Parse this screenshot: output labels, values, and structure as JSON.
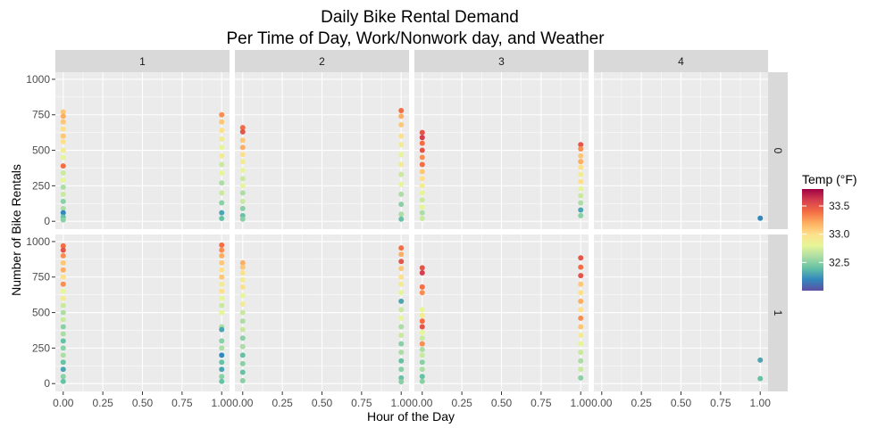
{
  "chart_data": {
    "type": "scatter",
    "title": "Daily Bike Rental Demand",
    "subtitle": "Per Time of Day, Work/Nonwork day, and Weather",
    "xlabel": "Hour of the Day",
    "ylabel": "Number of Bike Rentals",
    "xlim": [
      0,
      1
    ],
    "ylim": [
      0,
      1000
    ],
    "x_ticks": [
      "0.00",
      "0.25",
      "0.50",
      "0.75",
      "1.00"
    ],
    "y_ticks": [
      "0",
      "250",
      "500",
      "750",
      "1000"
    ],
    "facet_columns": [
      "1",
      "2",
      "3",
      "4"
    ],
    "facet_rows": [
      "0",
      "1"
    ],
    "grid": true,
    "legend": {
      "title": "Temp (°F)",
      "position": "right",
      "ticks": [
        "32.5",
        "33.0",
        "33.5"
      ],
      "range": [
        32.0,
        33.8
      ],
      "colors": [
        "#5e4fa2",
        "#3288bd",
        "#66c2a5",
        "#abdda4",
        "#e6f598",
        "#fee08b",
        "#fdae61",
        "#f46d43",
        "#d53e4f",
        "#9e0142"
      ]
    },
    "colors": {
      "panel_bg": "#ebebeb",
      "strip_bg": "#d9d9d9",
      "grid": "#ffffff"
    },
    "panels": [
      {
        "col": "1",
        "row": "0",
        "points": [
          {
            "x": 0,
            "y": 770,
            "t": 33.1
          },
          {
            "x": 0,
            "y": 740,
            "t": 33.2
          },
          {
            "x": 0,
            "y": 700,
            "t": 33.1
          },
          {
            "x": 0,
            "y": 650,
            "t": 33.0
          },
          {
            "x": 0,
            "y": 600,
            "t": 33.1
          },
          {
            "x": 0,
            "y": 560,
            "t": 33.0
          },
          {
            "x": 0,
            "y": 500,
            "t": 32.9
          },
          {
            "x": 0,
            "y": 450,
            "t": 32.8
          },
          {
            "x": 0,
            "y": 390,
            "t": 33.4
          },
          {
            "x": 0,
            "y": 340,
            "t": 32.7
          },
          {
            "x": 0,
            "y": 290,
            "t": 32.8
          },
          {
            "x": 0,
            "y": 240,
            "t": 32.6
          },
          {
            "x": 0,
            "y": 190,
            "t": 32.7
          },
          {
            "x": 0,
            "y": 140,
            "t": 32.5
          },
          {
            "x": 0,
            "y": 90,
            "t": 32.6
          },
          {
            "x": 0,
            "y": 60,
            "t": 32.2
          },
          {
            "x": 0,
            "y": 30,
            "t": 32.4
          },
          {
            "x": 0,
            "y": 10,
            "t": 32.5
          },
          {
            "x": 1,
            "y": 750,
            "t": 33.3
          },
          {
            "x": 1,
            "y": 700,
            "t": 33.1
          },
          {
            "x": 1,
            "y": 640,
            "t": 33.0
          },
          {
            "x": 1,
            "y": 580,
            "t": 32.9
          },
          {
            "x": 1,
            "y": 520,
            "t": 32.8
          },
          {
            "x": 1,
            "y": 460,
            "t": 32.9
          },
          {
            "x": 1,
            "y": 400,
            "t": 32.7
          },
          {
            "x": 1,
            "y": 340,
            "t": 32.8
          },
          {
            "x": 1,
            "y": 270,
            "t": 32.6
          },
          {
            "x": 1,
            "y": 200,
            "t": 32.7
          },
          {
            "x": 1,
            "y": 130,
            "t": 32.5
          },
          {
            "x": 1,
            "y": 60,
            "t": 32.3
          },
          {
            "x": 1,
            "y": 20,
            "t": 32.4
          }
        ]
      },
      {
        "col": "2",
        "row": "0",
        "points": [
          {
            "x": 0,
            "y": 660,
            "t": 33.4
          },
          {
            "x": 0,
            "y": 630,
            "t": 33.5
          },
          {
            "x": 0,
            "y": 570,
            "t": 33.1
          },
          {
            "x": 0,
            "y": 520,
            "t": 33.2
          },
          {
            "x": 0,
            "y": 470,
            "t": 33.0
          },
          {
            "x": 0,
            "y": 420,
            "t": 32.9
          },
          {
            "x": 0,
            "y": 360,
            "t": 32.8
          },
          {
            "x": 0,
            "y": 300,
            "t": 32.7
          },
          {
            "x": 0,
            "y": 250,
            "t": 32.8
          },
          {
            "x": 0,
            "y": 200,
            "t": 32.6
          },
          {
            "x": 0,
            "y": 140,
            "t": 32.7
          },
          {
            "x": 0,
            "y": 90,
            "t": 32.5
          },
          {
            "x": 0,
            "y": 40,
            "t": 32.4
          },
          {
            "x": 0,
            "y": 15,
            "t": 32.5
          },
          {
            "x": 1,
            "y": 780,
            "t": 33.4
          },
          {
            "x": 1,
            "y": 740,
            "t": 33.2
          },
          {
            "x": 1,
            "y": 680,
            "t": 33.1
          },
          {
            "x": 1,
            "y": 600,
            "t": 33.0
          },
          {
            "x": 1,
            "y": 540,
            "t": 32.9
          },
          {
            "x": 1,
            "y": 470,
            "t": 32.8
          },
          {
            "x": 1,
            "y": 400,
            "t": 32.9
          },
          {
            "x": 1,
            "y": 330,
            "t": 32.7
          },
          {
            "x": 1,
            "y": 260,
            "t": 32.8
          },
          {
            "x": 1,
            "y": 190,
            "t": 32.6
          },
          {
            "x": 1,
            "y": 120,
            "t": 32.5
          },
          {
            "x": 1,
            "y": 50,
            "t": 32.6
          },
          {
            "x": 1,
            "y": 15,
            "t": 32.4
          }
        ]
      },
      {
        "col": "3",
        "row": "0",
        "points": [
          {
            "x": 0,
            "y": 625,
            "t": 33.5
          },
          {
            "x": 0,
            "y": 590,
            "t": 33.6
          },
          {
            "x": 0,
            "y": 550,
            "t": 33.4
          },
          {
            "x": 0,
            "y": 500,
            "t": 33.5
          },
          {
            "x": 0,
            "y": 450,
            "t": 33.3
          },
          {
            "x": 0,
            "y": 400,
            "t": 33.4
          },
          {
            "x": 0,
            "y": 350,
            "t": 33.1
          },
          {
            "x": 0,
            "y": 300,
            "t": 33.0
          },
          {
            "x": 0,
            "y": 250,
            "t": 32.9
          },
          {
            "x": 0,
            "y": 200,
            "t": 32.8
          },
          {
            "x": 0,
            "y": 150,
            "t": 32.7
          },
          {
            "x": 0,
            "y": 100,
            "t": 32.8
          },
          {
            "x": 0,
            "y": 60,
            "t": 32.6
          },
          {
            "x": 0,
            "y": 20,
            "t": 32.7
          },
          {
            "x": 1,
            "y": 540,
            "t": 33.5
          },
          {
            "x": 1,
            "y": 510,
            "t": 33.3
          },
          {
            "x": 1,
            "y": 460,
            "t": 33.1
          },
          {
            "x": 1,
            "y": 420,
            "t": 33.2
          },
          {
            "x": 1,
            "y": 380,
            "t": 33.0
          },
          {
            "x": 1,
            "y": 330,
            "t": 32.9
          },
          {
            "x": 1,
            "y": 280,
            "t": 33.0
          },
          {
            "x": 1,
            "y": 230,
            "t": 32.8
          },
          {
            "x": 1,
            "y": 180,
            "t": 32.7
          },
          {
            "x": 1,
            "y": 130,
            "t": 32.6
          },
          {
            "x": 1,
            "y": 80,
            "t": 32.3
          },
          {
            "x": 1,
            "y": 40,
            "t": 32.5
          }
        ]
      },
      {
        "col": "4",
        "row": "0",
        "points": [
          {
            "x": 1,
            "y": 22,
            "t": 32.2
          }
        ]
      },
      {
        "col": "1",
        "row": "1",
        "points": [
          {
            "x": 0,
            "y": 970,
            "t": 33.4
          },
          {
            "x": 0,
            "y": 940,
            "t": 33.5
          },
          {
            "x": 0,
            "y": 900,
            "t": 33.3
          },
          {
            "x": 0,
            "y": 850,
            "t": 33.1
          },
          {
            "x": 0,
            "y": 800,
            "t": 33.2
          },
          {
            "x": 0,
            "y": 750,
            "t": 33.0
          },
          {
            "x": 0,
            "y": 700,
            "t": 33.3
          },
          {
            "x": 0,
            "y": 650,
            "t": 32.8
          },
          {
            "x": 0,
            "y": 600,
            "t": 32.9
          },
          {
            "x": 0,
            "y": 550,
            "t": 32.7
          },
          {
            "x": 0,
            "y": 500,
            "t": 32.6
          },
          {
            "x": 0,
            "y": 450,
            "t": 32.7
          },
          {
            "x": 0,
            "y": 400,
            "t": 32.5
          },
          {
            "x": 0,
            "y": 350,
            "t": 32.6
          },
          {
            "x": 0,
            "y": 300,
            "t": 32.4
          },
          {
            "x": 0,
            "y": 250,
            "t": 32.5
          },
          {
            "x": 0,
            "y": 200,
            "t": 32.6
          },
          {
            "x": 0,
            "y": 150,
            "t": 32.4
          },
          {
            "x": 0,
            "y": 100,
            "t": 32.3
          },
          {
            "x": 0,
            "y": 50,
            "t": 32.5
          },
          {
            "x": 0,
            "y": 15,
            "t": 32.4
          },
          {
            "x": 1,
            "y": 975,
            "t": 33.4
          },
          {
            "x": 1,
            "y": 940,
            "t": 33.3
          },
          {
            "x": 1,
            "y": 900,
            "t": 33.2
          },
          {
            "x": 1,
            "y": 850,
            "t": 33.1
          },
          {
            "x": 1,
            "y": 800,
            "t": 33.0
          },
          {
            "x": 1,
            "y": 750,
            "t": 33.1
          },
          {
            "x": 1,
            "y": 700,
            "t": 32.9
          },
          {
            "x": 1,
            "y": 650,
            "t": 33.0
          },
          {
            "x": 1,
            "y": 600,
            "t": 32.8
          },
          {
            "x": 1,
            "y": 550,
            "t": 32.7
          },
          {
            "x": 1,
            "y": 500,
            "t": 32.8
          },
          {
            "x": 1,
            "y": 400,
            "t": 32.6
          },
          {
            "x": 1,
            "y": 380,
            "t": 32.3
          },
          {
            "x": 1,
            "y": 300,
            "t": 32.5
          },
          {
            "x": 1,
            "y": 250,
            "t": 32.6
          },
          {
            "x": 1,
            "y": 200,
            "t": 32.2
          },
          {
            "x": 1,
            "y": 150,
            "t": 32.4
          },
          {
            "x": 1,
            "y": 100,
            "t": 32.3
          },
          {
            "x": 1,
            "y": 50,
            "t": 32.5
          },
          {
            "x": 1,
            "y": 15,
            "t": 32.4
          }
        ]
      },
      {
        "col": "2",
        "row": "1",
        "points": [
          {
            "x": 0,
            "y": 850,
            "t": 33.2
          },
          {
            "x": 0,
            "y": 820,
            "t": 33.1
          },
          {
            "x": 0,
            "y": 780,
            "t": 33.0
          },
          {
            "x": 0,
            "y": 730,
            "t": 32.9
          },
          {
            "x": 0,
            "y": 680,
            "t": 33.0
          },
          {
            "x": 0,
            "y": 620,
            "t": 32.8
          },
          {
            "x": 0,
            "y": 560,
            "t": 32.9
          },
          {
            "x": 0,
            "y": 500,
            "t": 32.7
          },
          {
            "x": 0,
            "y": 440,
            "t": 32.6
          },
          {
            "x": 0,
            "y": 380,
            "t": 32.7
          },
          {
            "x": 0,
            "y": 320,
            "t": 32.5
          },
          {
            "x": 0,
            "y": 260,
            "t": 32.6
          },
          {
            "x": 0,
            "y": 200,
            "t": 32.4
          },
          {
            "x": 0,
            "y": 140,
            "t": 32.5
          },
          {
            "x": 0,
            "y": 80,
            "t": 32.4
          },
          {
            "x": 0,
            "y": 20,
            "t": 32.5
          },
          {
            "x": 1,
            "y": 955,
            "t": 33.4
          },
          {
            "x": 1,
            "y": 910,
            "t": 33.2
          },
          {
            "x": 1,
            "y": 860,
            "t": 33.5
          },
          {
            "x": 1,
            "y": 810,
            "t": 33.1
          },
          {
            "x": 1,
            "y": 750,
            "t": 33.0
          },
          {
            "x": 1,
            "y": 700,
            "t": 32.9
          },
          {
            "x": 1,
            "y": 640,
            "t": 32.8
          },
          {
            "x": 1,
            "y": 580,
            "t": 32.3
          },
          {
            "x": 1,
            "y": 520,
            "t": 32.7
          },
          {
            "x": 1,
            "y": 460,
            "t": 32.8
          },
          {
            "x": 1,
            "y": 400,
            "t": 32.6
          },
          {
            "x": 1,
            "y": 340,
            "t": 32.7
          },
          {
            "x": 1,
            "y": 280,
            "t": 32.5
          },
          {
            "x": 1,
            "y": 220,
            "t": 32.6
          },
          {
            "x": 1,
            "y": 160,
            "t": 32.4
          },
          {
            "x": 1,
            "y": 100,
            "t": 32.5
          },
          {
            "x": 1,
            "y": 40,
            "t": 32.4
          },
          {
            "x": 1,
            "y": 12,
            "t": 32.5
          }
        ]
      },
      {
        "col": "3",
        "row": "1",
        "points": [
          {
            "x": 0,
            "y": 815,
            "t": 33.5
          },
          {
            "x": 0,
            "y": 780,
            "t": 33.6
          },
          {
            "x": 0,
            "y": 680,
            "t": 33.4
          },
          {
            "x": 0,
            "y": 640,
            "t": 33.3
          },
          {
            "x": 0,
            "y": 520,
            "t": 32.8
          },
          {
            "x": 0,
            "y": 480,
            "t": 32.9
          },
          {
            "x": 0,
            "y": 440,
            "t": 33.4
          },
          {
            "x": 0,
            "y": 400,
            "t": 33.5
          },
          {
            "x": 0,
            "y": 360,
            "t": 32.8
          },
          {
            "x": 0,
            "y": 320,
            "t": 32.7
          },
          {
            "x": 0,
            "y": 280,
            "t": 33.3
          },
          {
            "x": 0,
            "y": 240,
            "t": 32.6
          },
          {
            "x": 0,
            "y": 200,
            "t": 32.7
          },
          {
            "x": 0,
            "y": 150,
            "t": 32.5
          },
          {
            "x": 0,
            "y": 100,
            "t": 32.6
          },
          {
            "x": 0,
            "y": 50,
            "t": 32.4
          },
          {
            "x": 0,
            "y": 15,
            "t": 32.5
          },
          {
            "x": 1,
            "y": 885,
            "t": 33.5
          },
          {
            "x": 1,
            "y": 820,
            "t": 33.4
          },
          {
            "x": 1,
            "y": 760,
            "t": 33.5
          },
          {
            "x": 1,
            "y": 700,
            "t": 33.1
          },
          {
            "x": 1,
            "y": 640,
            "t": 33.0
          },
          {
            "x": 1,
            "y": 580,
            "t": 33.2
          },
          {
            "x": 1,
            "y": 520,
            "t": 33.0
          },
          {
            "x": 1,
            "y": 460,
            "t": 33.3
          },
          {
            "x": 1,
            "y": 400,
            "t": 33.1
          },
          {
            "x": 1,
            "y": 340,
            "t": 32.9
          },
          {
            "x": 1,
            "y": 280,
            "t": 32.8
          },
          {
            "x": 1,
            "y": 220,
            "t": 32.7
          },
          {
            "x": 1,
            "y": 160,
            "t": 32.6
          },
          {
            "x": 1,
            "y": 100,
            "t": 32.7
          },
          {
            "x": 1,
            "y": 40,
            "t": 32.5
          }
        ]
      },
      {
        "col": "4",
        "row": "1",
        "points": [
          {
            "x": 1,
            "y": 165,
            "t": 32.3
          },
          {
            "x": 1,
            "y": 35,
            "t": 32.4
          }
        ]
      }
    ]
  }
}
